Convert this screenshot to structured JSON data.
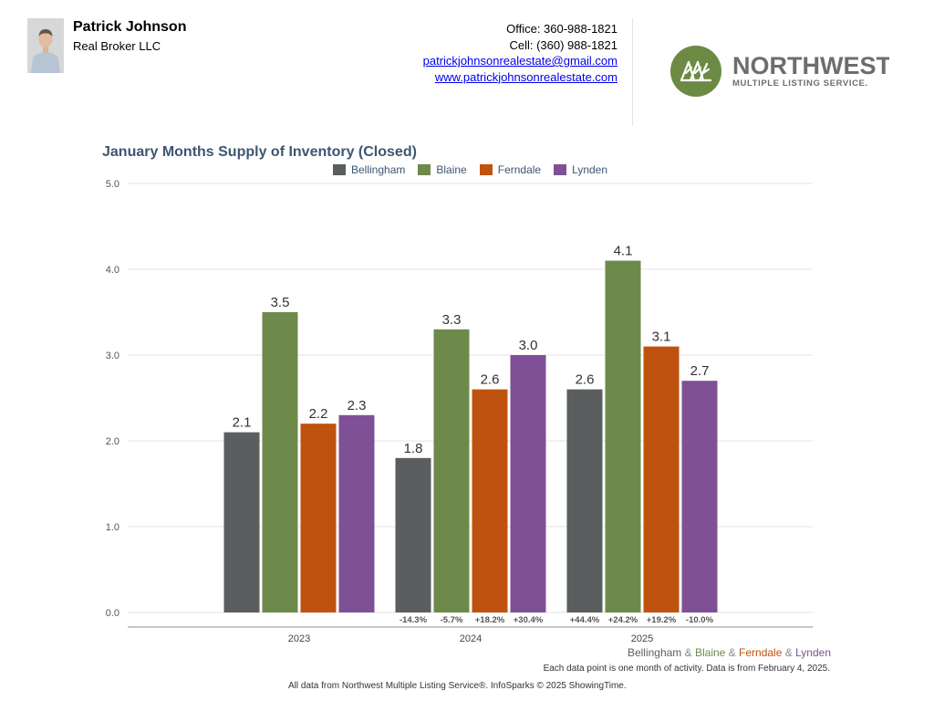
{
  "agent": {
    "name": "Patrick Johnson",
    "company": "Real Broker LLC",
    "office": "Office: 360-988-1821",
    "cell": "Cell: (360) 988-1821",
    "email": "patrickjohnsonrealestate@gmail.com",
    "website": "www.patrickjohnsonrealestate.com"
  },
  "logo": {
    "line1": "NORTHWEST",
    "line2": "MULTIPLE LISTING SERVICE.",
    "brand_color": "#6d8a45",
    "text_color": "#6b6e70"
  },
  "chart_data": {
    "type": "bar",
    "title": "January Months Supply of Inventory (Closed)",
    "categories": [
      "2023",
      "2024",
      "2025"
    ],
    "series": [
      {
        "name": "Bellingham",
        "color": "#5a5e5f",
        "values": [
          2.1,
          1.8,
          2.6
        ],
        "changes": [
          "",
          "-14.3%",
          "+44.4%"
        ]
      },
      {
        "name": "Blaine",
        "color": "#6e8a4b",
        "values": [
          3.5,
          3.3,
          4.1
        ],
        "changes": [
          "",
          "-5.7%",
          "+24.2%"
        ]
      },
      {
        "name": "Ferndale",
        "color": "#c0520f",
        "values": [
          2.2,
          2.6,
          3.1
        ],
        "changes": [
          "",
          "+18.2%",
          "+19.2%"
        ]
      },
      {
        "name": "Lynden",
        "color": "#7f5096",
        "values": [
          2.3,
          3.0,
          2.7
        ],
        "changes": [
          "",
          "+30.4%",
          "-10.0%"
        ]
      }
    ],
    "ylim": [
      0,
      5
    ],
    "yticks": [
      "0.0",
      "1.0",
      "2.0",
      "3.0",
      "4.0",
      "5.0"
    ],
    "grid": true,
    "legend_position": "top-center"
  },
  "footer": {
    "series_caption": [
      {
        "text": "Bellingham",
        "color": "#5a5e5f"
      },
      {
        "text": " & ",
        "color": "#8a8a8a"
      },
      {
        "text": "Blaine",
        "color": "#6e8a4b"
      },
      {
        "text": " & ",
        "color": "#8a8a8a"
      },
      {
        "text": "Ferndale",
        "color": "#c0520f"
      },
      {
        "text": " & ",
        "color": "#8a8a8a"
      },
      {
        "text": "Lynden",
        "color": "#7f5096"
      }
    ],
    "activity_note": "Each data point is one month of activity. Data is from February 4, 2025.",
    "source_note": "All data from Northwest Multiple Listing Service®. InfoSparks © 2025 ShowingTime."
  }
}
